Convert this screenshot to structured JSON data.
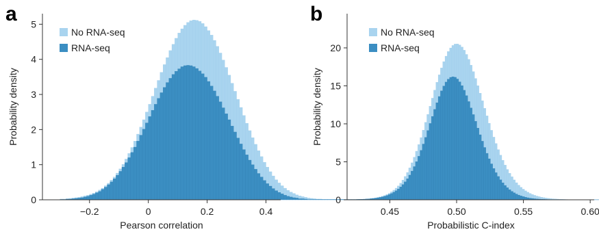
{
  "chart_data": [
    {
      "panel": "a",
      "type": "bar",
      "xlabel": "Pearson correlation",
      "ylabel": "Probability density",
      "xlim": [
        -0.36,
        0.45
      ],
      "ylim": [
        0,
        5.3
      ],
      "xticks": [
        -0.2,
        0,
        0.2,
        0.4
      ],
      "xtick_labels": [
        "−0.2",
        "0",
        "0.2",
        "0.4"
      ],
      "yticks": [
        0,
        1,
        2,
        3,
        4,
        5
      ],
      "ytick_labels": [
        "0",
        "1",
        "2",
        "3",
        "4",
        "5"
      ],
      "legend_position": "top-left",
      "colors": {
        "No RNA-seq": "#a9d4ef",
        "RNA-seq": "#3b8ec2"
      },
      "bin_start": -0.3,
      "bin_width": 0.01,
      "series": [
        {
          "name": "No RNA-seq",
          "values": [
            0.02,
            0.02,
            0.03,
            0.04,
            0.05,
            0.06,
            0.07,
            0.09,
            0.11,
            0.13,
            0.16,
            0.19,
            0.23,
            0.28,
            0.33,
            0.4,
            0.47,
            0.56,
            0.65,
            0.76,
            0.88,
            1.01,
            1.16,
            1.32,
            1.49,
            1.67,
            1.87,
            2.07,
            2.28,
            2.5,
            2.72,
            2.95,
            3.18,
            3.4,
            3.63,
            3.85,
            4.05,
            4.25,
            4.43,
            4.6,
            4.75,
            4.87,
            4.97,
            5.05,
            5.1,
            5.12,
            5.11,
            5.08,
            5.02,
            4.93,
            4.82,
            4.69,
            4.54,
            4.37,
            4.18,
            3.98,
            3.77,
            3.55,
            3.32,
            3.09,
            2.86,
            2.63,
            2.4,
            2.18,
            1.97,
            1.77,
            1.58,
            1.4,
            1.23,
            1.07,
            0.93,
            0.8,
            0.68,
            0.57,
            0.48,
            0.4,
            0.33,
            0.27,
            0.22,
            0.18,
            0.14,
            0.11,
            0.09,
            0.07,
            0.05,
            0.04,
            0.03,
            0.02,
            0.02,
            0.01,
            0.01,
            0.01,
            0.01,
            0.01,
            0.01,
            0.01,
            0.01,
            0.01,
            0.01,
            0.01,
            0.01,
            0.01,
            0.01,
            0.01,
            0.01,
            0.01,
            0.01,
            0.01,
            0.01,
            0.01,
            0.01,
            0.01,
            0.01,
            0.01
          ]
        },
        {
          "name": "RNA-seq",
          "values": [
            0.01,
            0.01,
            0.02,
            0.02,
            0.03,
            0.04,
            0.05,
            0.06,
            0.08,
            0.1,
            0.13,
            0.16,
            0.2,
            0.24,
            0.3,
            0.36,
            0.43,
            0.51,
            0.6,
            0.7,
            0.81,
            0.93,
            1.06,
            1.2,
            1.35,
            1.5,
            1.67,
            1.84,
            2.01,
            2.19,
            2.37,
            2.55,
            2.72,
            2.89,
            3.05,
            3.2,
            3.34,
            3.46,
            3.57,
            3.66,
            3.73,
            3.79,
            3.82,
            3.83,
            3.82,
            3.79,
            3.74,
            3.67,
            3.59,
            3.49,
            3.37,
            3.24,
            3.1,
            2.95,
            2.79,
            2.62,
            2.45,
            2.28,
            2.1,
            1.93,
            1.76,
            1.59,
            1.43,
            1.28,
            1.13,
            1,
            0.87,
            0.75,
            0.65,
            0.55,
            0.46,
            0.39,
            0.32,
            0.26,
            0.21,
            0.17,
            0.13,
            0.1,
            0.08,
            0.06,
            0.05,
            0.03,
            0.03,
            0.02,
            0.01,
            0.01,
            0.01,
            0.01,
            0.01,
            0.01,
            0.01,
            0.01,
            0.01,
            0.01,
            0.01,
            0.01,
            0.01,
            0.01,
            0.01,
            0.01,
            0.01,
            0.01,
            0.01,
            0.01,
            0.01,
            0.01,
            0.01,
            0.01,
            0.01,
            0.01,
            0.01,
            0.01,
            0.01,
            0.01
          ]
        }
      ]
    },
    {
      "panel": "b",
      "type": "bar",
      "xlabel": "Probabilistic C-index",
      "ylabel": "Probability density",
      "xlim": [
        0.418,
        0.603
      ],
      "ylim": [
        0,
        24.5
      ],
      "xticks": [
        0.45,
        0.5,
        0.55,
        0.6
      ],
      "xtick_labels": [
        "0.45",
        "0.50",
        "0.55",
        "0.60"
      ],
      "yticks": [
        0,
        5,
        10,
        15,
        20
      ],
      "ytick_labels": [
        "0",
        "5",
        "10",
        "15",
        "20"
      ],
      "legend_position": "top-left",
      "colors": {
        "No RNA-seq": "#a9d4ef",
        "RNA-seq": "#3b8ec2"
      },
      "bin_start": 0.425,
      "bin_width": 0.0017,
      "series": [
        {
          "name": "No RNA-seq",
          "values": [
            0.05,
            0.06,
            0.07,
            0.09,
            0.11,
            0.13,
            0.16,
            0.2,
            0.25,
            0.31,
            0.38,
            0.47,
            0.57,
            0.7,
            0.86,
            1.05,
            1.27,
            1.53,
            1.83,
            2.19,
            2.6,
            3.07,
            3.6,
            4.2,
            4.87,
            5.6,
            6.4,
            7.27,
            8.19,
            9.17,
            10.19,
            11.24,
            12.31,
            13.38,
            14.44,
            15.47,
            16.45,
            17.36,
            18.19,
            18.91,
            19.52,
            19.99,
            20.32,
            20.5,
            20.52,
            20.39,
            20.11,
            19.69,
            19.14,
            18.48,
            17.72,
            16.88,
            15.97,
            15.02,
            14.04,
            13.04,
            12.04,
            11.05,
            10.08,
            9.15,
            8.25,
            7.41,
            6.61,
            5.88,
            5.2,
            4.57,
            4,
            3.49,
            3.03,
            2.62,
            2.25,
            1.93,
            1.65,
            1.4,
            1.18,
            1,
            0.84,
            0.7,
            0.59,
            0.49,
            0.41,
            0.34,
            0.28,
            0.23,
            0.19,
            0.16,
            0.13,
            0.11,
            0.09,
            0.07,
            0.06,
            0.05,
            0.04,
            0.03,
            0.03,
            0.02,
            0.02,
            0.02,
            0.01,
            0.01,
            0.01,
            0.01,
            0.01,
            0.01,
            0.01,
            0.01,
            0.01,
            0.01
          ]
        },
        {
          "name": "RNA-seq",
          "values": [
            0.05,
            0.06,
            0.07,
            0.08,
            0.1,
            0.12,
            0.15,
            0.18,
            0.22,
            0.27,
            0.32,
            0.39,
            0.47,
            0.57,
            0.69,
            0.83,
            1,
            1.2,
            1.43,
            1.7,
            2.01,
            2.37,
            2.78,
            3.25,
            3.78,
            4.37,
            5.02,
            5.73,
            6.51,
            7.34,
            8.21,
            9.12,
            10.05,
            10.98,
            11.9,
            12.78,
            13.6,
            14.34,
            14.98,
            15.5,
            15.88,
            16.12,
            16.2,
            16.13,
            15.9,
            15.53,
            15.03,
            14.42,
            13.71,
            12.93,
            12.09,
            11.22,
            10.33,
            9.44,
            8.56,
            7.71,
            6.89,
            6.12,
            5.4,
            4.73,
            4.12,
            3.57,
            3.07,
            2.63,
            2.24,
            1.89,
            1.59,
            1.33,
            1.11,
            0.92,
            0.76,
            0.62,
            0.51,
            0.42,
            0.34,
            0.27,
            0.22,
            0.18,
            0.14,
            0.11,
            0.09,
            0.07,
            0.06,
            0.05,
            0.04,
            0.03,
            0.02,
            0.02,
            0.02,
            0.01,
            0.01,
            0.01,
            0.01,
            0.01,
            0.01,
            0.01,
            0.01,
            0.01,
            0.01,
            0.01,
            0.01,
            0.01,
            0.01,
            0.01,
            0.01,
            0.01,
            0.01,
            0.01
          ]
        }
      ]
    }
  ]
}
